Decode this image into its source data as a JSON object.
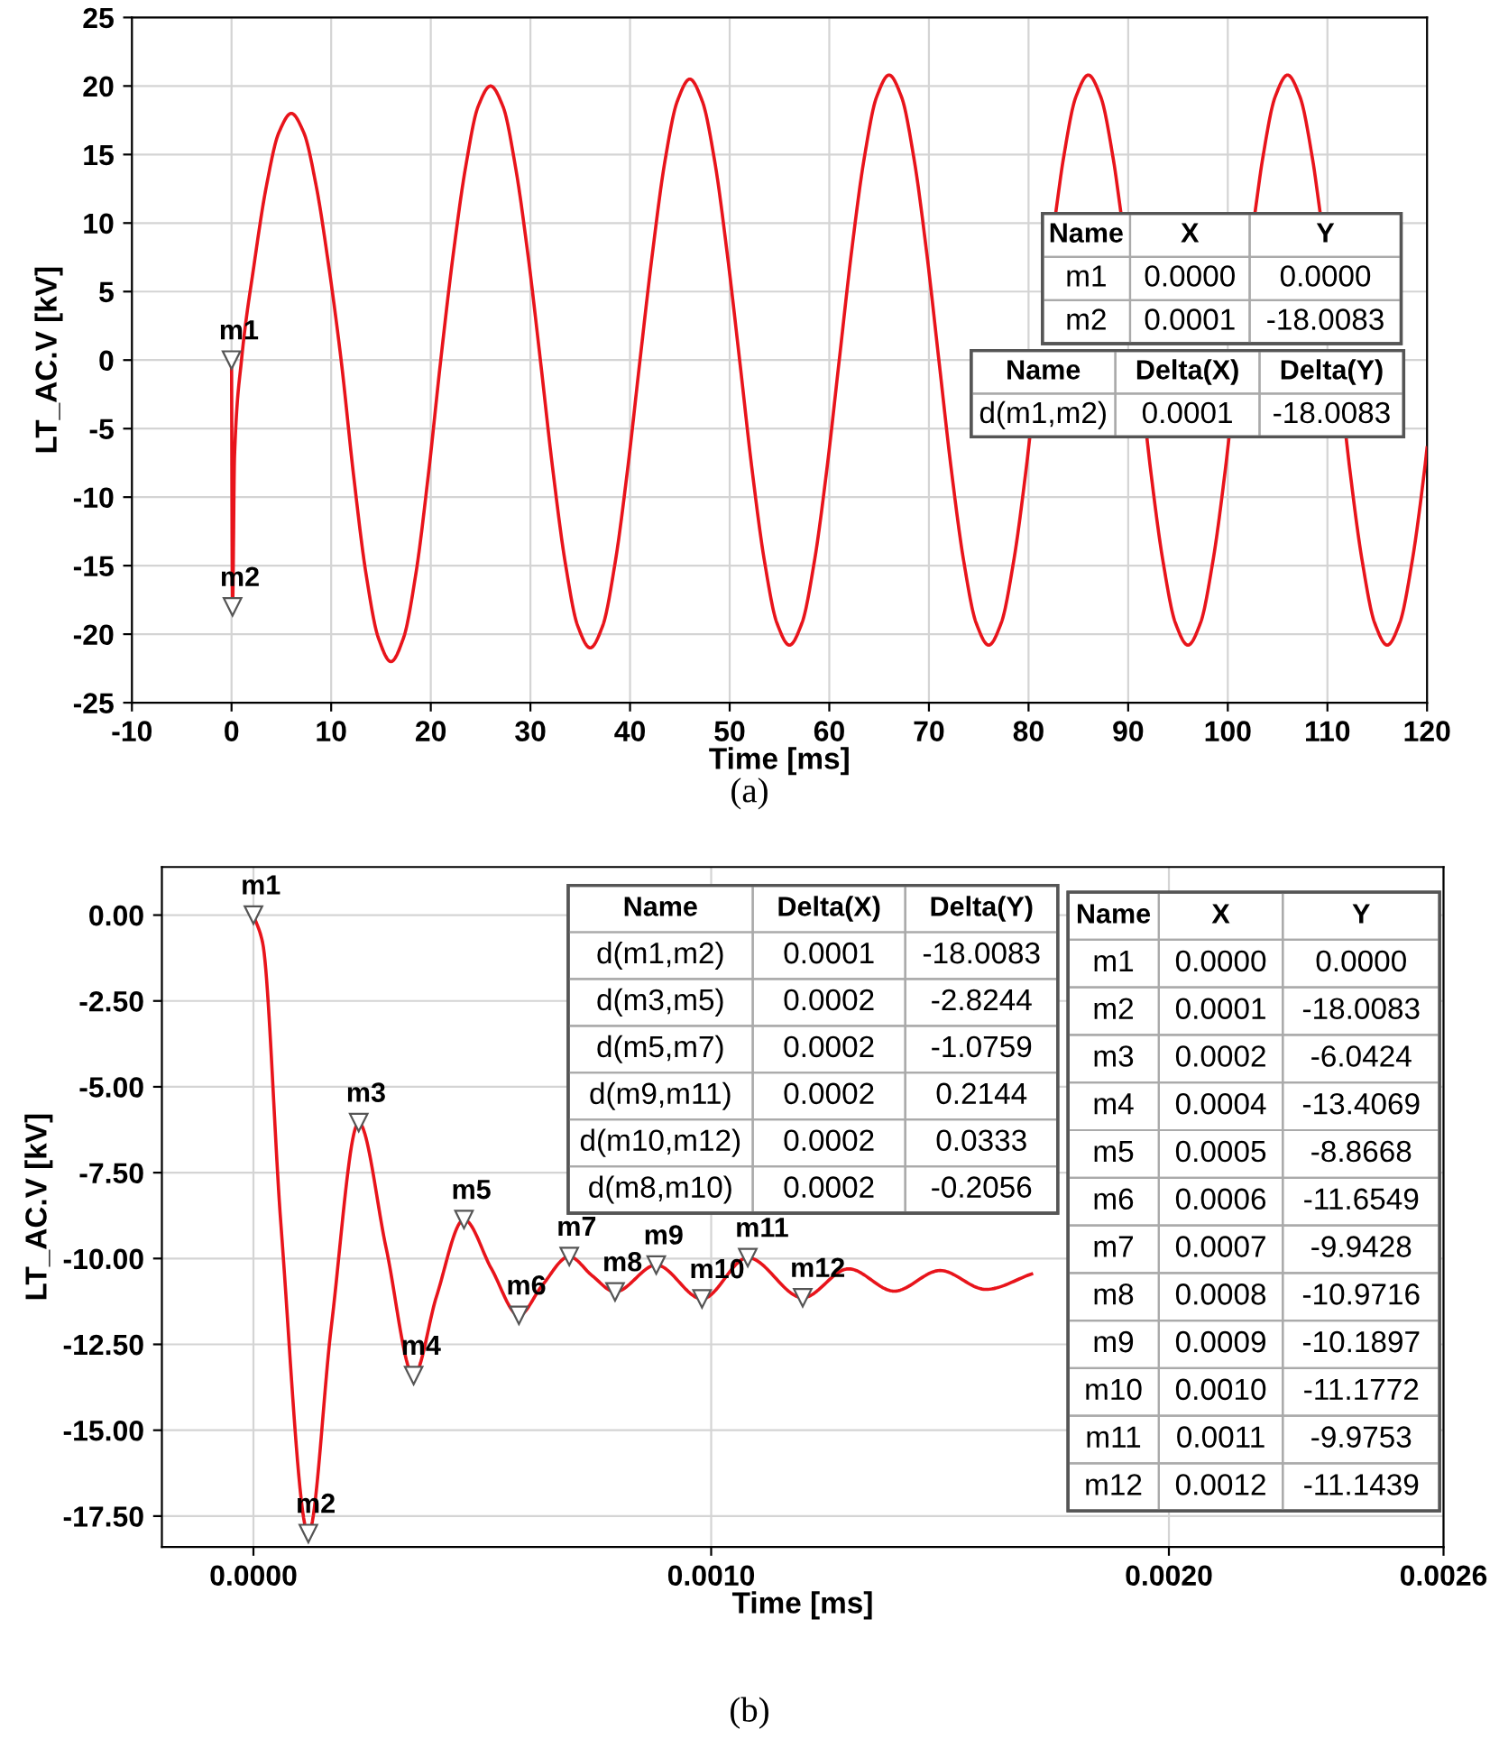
{
  "chart_data": [
    {
      "type": "line",
      "xlabel": "Time [ms]",
      "ylabel": "LT_AC.V [kV]",
      "xlim": [
        -10,
        120
      ],
      "xticks": [
        -10,
        0,
        10,
        20,
        30,
        40,
        50,
        60,
        70,
        80,
        90,
        100,
        110,
        120
      ],
      "ylim": [
        -25,
        25
      ],
      "yticks": [
        -25,
        -20,
        -15,
        -10,
        -5,
        0,
        5,
        10,
        15,
        20,
        25
      ],
      "grid": true,
      "series": [
        {
          "color": "#e8141b",
          "x": [
            0,
            0.1,
            0.3,
            1,
            2.25,
            3.5,
            4.75,
            6,
            7.25,
            8.5,
            9.75,
            11,
            12.25,
            13.5,
            14.75,
            16,
            17.25,
            18.5,
            19.75,
            21,
            22.25,
            23.5,
            24.75,
            26,
            27.25,
            28.5,
            29.75,
            31,
            32.25,
            33.5,
            34.75,
            36,
            37.25,
            38.5,
            39.75,
            41,
            42.25,
            43.5,
            44.75,
            46,
            47.25,
            48.5,
            49.75,
            51,
            52.25,
            53.5,
            54.75,
            56,
            57.25,
            58.5,
            59.75,
            61,
            62.25,
            63.5,
            64.75,
            66,
            67.25,
            68.5,
            69.75,
            71,
            72.25,
            73.5,
            74.75,
            76,
            77.25,
            78.5,
            79.75,
            80.13,
            81,
            82.25,
            82.72,
            83.5,
            84.75,
            86,
            87.25,
            88.5,
            89.28,
            89.75,
            91,
            91.87,
            92.25,
            93.5,
            94.75,
            96,
            97.25,
            98.5,
            99.75,
            100.13,
            101,
            102.25,
            102.72,
            103.5,
            104.75,
            106,
            107.25,
            108.5,
            109.28,
            109.75,
            111,
            111.87,
            112.25,
            113.5,
            114.75,
            116,
            117.25,
            118.5,
            119.75,
            120
          ],
          "values": [
            0,
            -18.0083,
            -7,
            0,
            6.9,
            12.7,
            16.6,
            18,
            16.6,
            12.7,
            6.9,
            0,
            -8.4,
            -15.6,
            -20.3,
            -22,
            -20.3,
            -15.6,
            -8.4,
            0,
            7.7,
            14.1,
            18.5,
            20,
            18.5,
            14.1,
            7.7,
            0,
            -8.0,
            -14.8,
            -19.4,
            -21,
            -19.4,
            -14.8,
            -8.0,
            0,
            7.8,
            14.5,
            18.9,
            20.5,
            18.9,
            14.5,
            7.8,
            0,
            -8.0,
            -14.7,
            -19.2,
            -20.8,
            -19.2,
            -14.7,
            -8.0,
            0,
            8.0,
            14.7,
            19.2,
            20.8,
            19.2,
            14.7,
            8.0,
            0,
            -8.0,
            -14.7,
            -19.2,
            -20.8,
            -19.2,
            -14.7,
            -8.0,
            -5.6,
            null,
            null,
            10.7,
            14.7,
            19.2,
            20.8,
            19.2,
            14.7,
            10.7,
            null,
            null,
            -5.6,
            -8.0,
            -14.7,
            -19.2,
            -20.8,
            -19.2,
            -14.7,
            -8.0,
            -5.6,
            null,
            null,
            10.7,
            14.7,
            19.2,
            20.8,
            19.2,
            14.7,
            10.7,
            null,
            null,
            -5.6,
            -8.0,
            -14.7,
            -19.2,
            -20.8,
            -19.2,
            -14.7,
            -8.0,
            -6.4
          ]
        }
      ],
      "annotations": [
        {
          "text": "m1",
          "x": 0,
          "y": 0
        },
        {
          "text": "m2",
          "x": 0.1,
          "y": -18.0083
        },
        "Name X Y\nm1 0.0000 0.0000\nm2 0.0001 -18.0083",
        "Name Delta(X) Delta(Y)\nd(m1,m2) 0.0001 -18.0083",
        "(a)"
      ]
    },
    {
      "type": "line",
      "xlabel": "Time [ms]",
      "ylabel": "LT_AC.V [kV]",
      "xlim": [
        -0.0002,
        0.0026
      ],
      "xticks": [
        {
          "value": 0,
          "label": "0.0000"
        },
        {
          "value": 0.001,
          "label": "0.0010"
        },
        {
          "value": 0.002,
          "label": "0.0020"
        },
        {
          "value": 0.0026,
          "label": "0.0026"
        }
      ],
      "ylim": [
        -18.4,
        1.4
      ],
      "yticks": [
        {
          "value": 0,
          "label": "0.00"
        },
        {
          "value": -2.5,
          "label": "-2.50"
        },
        {
          "value": -5,
          "label": "-5.00"
        },
        {
          "value": -7.5,
          "label": "-7.50"
        },
        {
          "value": -10,
          "label": "-10.00"
        },
        {
          "value": -12.5,
          "label": "-12.50"
        },
        {
          "value": -15,
          "label": "-15.00"
        },
        {
          "value": -17.5,
          "label": "-17.50"
        }
      ],
      "grid": true,
      "series": [
        {
          "color": "#e8141b",
          "x": [
            0,
            2e-05,
            6e-05,
            0.00012,
            0.00017,
            0.00023,
            0.00029,
            0.00035,
            0.0004,
            0.00046,
            0.00052,
            0.00058,
            0.00063,
            0.00069,
            0.00074,
            0.00079,
            0.00088,
            0.00098,
            0.00108,
            0.0012,
            0.0013,
            0.0014,
            0.0015,
            0.0016,
            0.0017
          ],
          "values": [
            0,
            -0.8,
            -9,
            -18.0083,
            -12,
            -6.0424,
            -9.7,
            -13.4069,
            -11.1,
            -8.8668,
            -10.3,
            -11.6549,
            -10.8,
            -9.9428,
            -10.5,
            -10.9716,
            -10.1897,
            -11.1772,
            -9.9753,
            -11.1439,
            -10.3,
            -10.95,
            -10.35,
            -10.9,
            -10.45
          ]
        }
      ],
      "annotations": [
        {
          "text": "m1",
          "x": 0,
          "y": 0
        },
        {
          "text": "m2",
          "x": 0.00012,
          "y": -18.0083
        },
        {
          "text": "m3",
          "x": 0.00023,
          "y": -6.0424
        },
        {
          "text": "m4",
          "x": 0.00035,
          "y": -13.4069
        },
        {
          "text": "m5",
          "x": 0.00046,
          "y": -8.8668
        },
        {
          "text": "m6",
          "x": 0.00058,
          "y": -11.6549
        },
        {
          "text": "m7",
          "x": 0.00069,
          "y": -9.9428
        },
        {
          "text": "m8",
          "x": 0.00079,
          "y": -10.9716
        },
        {
          "text": "m9",
          "x": 0.00088,
          "y": -10.1897
        },
        {
          "text": "m10",
          "x": 0.00098,
          "y": -11.1772
        },
        {
          "text": "m11",
          "x": 0.00108,
          "y": -9.9753
        },
        {
          "text": "m12",
          "x": 0.0012,
          "y": -11.1439
        },
        "Name Delta(X) Delta(Y)\nd(m1,m2) 0.0001 -18.0083\nd(m3,m5) 0.0002 -2.8244\nd(m5,m7) 0.0002 -1.0759\nd(m9,m11) 0.0002 0.2144\nd(m10,m12) 0.0002 0.0333\nd(m8,m10) 0.0002 -0.2056",
        "Name X Y\nm1 0.0000 0.0000\nm2 0.0001 -18.0083\nm3 0.0002 -6.0424\nm4 0.0004 -13.4069\nm5 0.0005 -8.8668\nm6 0.0006 -11.6549\nm7 0.0007 -9.9428\nm8 0.0008 -10.9716\nm9 0.0009 -10.1897\nm10 0.0010 -11.1772\nm11 0.0011 -9.9753\nm12 0.0012 -11.1439",
        "(b)"
      ]
    }
  ]
}
